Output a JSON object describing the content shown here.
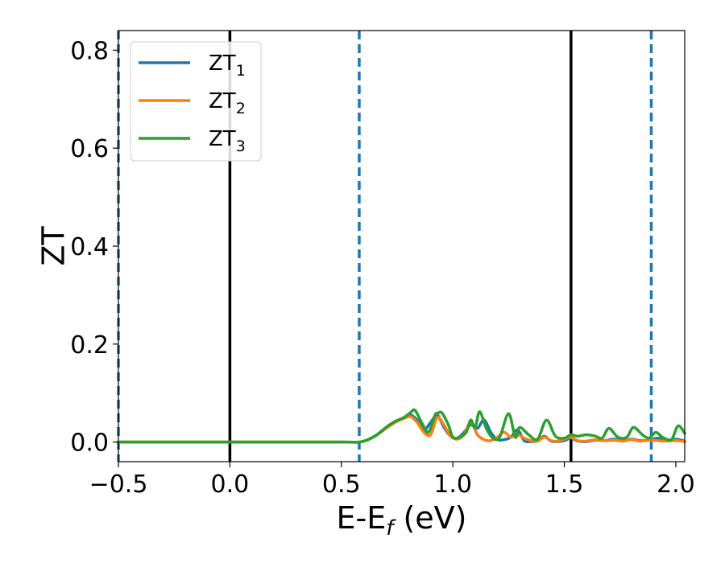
{
  "chart_data": {
    "type": "line",
    "xlabel": {
      "main": "E-E",
      "sub": "f",
      "suffix": " (eV)"
    },
    "ylabel": "ZT",
    "xlim": [
      -0.5,
      2.04
    ],
    "ylim": [
      -0.04,
      0.84
    ],
    "xticks": [
      {
        "value": -0.5,
        "label": "−0.5"
      },
      {
        "value": 0.0,
        "label": "0.0"
      },
      {
        "value": 0.5,
        "label": "0.5"
      },
      {
        "value": 1.0,
        "label": "1.0"
      },
      {
        "value": 1.5,
        "label": "1.5"
      },
      {
        "value": 2.0,
        "label": "2.0"
      }
    ],
    "yticks": [
      {
        "value": 0.0,
        "label": "0.0"
      },
      {
        "value": 0.2,
        "label": "0.2"
      },
      {
        "value": 0.4,
        "label": "0.4"
      },
      {
        "value": 0.6,
        "label": "0.6"
      },
      {
        "value": 0.8,
        "label": "0.8"
      }
    ],
    "grid": false,
    "legend_position": "top-left",
    "vlines_solid": [
      0.0,
      1.53
    ],
    "vlines_dashed": [
      -0.5,
      0.58,
      1.89
    ],
    "vline_solid_color": "#000000",
    "vline_dashed_color": "#1f77b4",
    "series": [
      {
        "name": "ZT",
        "sub": "1",
        "color": "#1f77b4",
        "x": [
          -0.5,
          0.0,
          0.5,
          0.58,
          0.62,
          0.66,
          0.7,
          0.74,
          0.78,
          0.81,
          0.84,
          0.87,
          0.9,
          0.93,
          0.96,
          0.99,
          1.02,
          1.05,
          1.08,
          1.11,
          1.14,
          1.17,
          1.2,
          1.23,
          1.26,
          1.29,
          1.32,
          1.35,
          1.38,
          1.41,
          1.44,
          1.47,
          1.5,
          1.53,
          1.56,
          1.6,
          1.64,
          1.68,
          1.72,
          1.76,
          1.8,
          1.84,
          1.88,
          1.92,
          1.96,
          2.0,
          2.04
        ],
        "y": [
          0.0,
          0.0,
          0.0,
          0.0,
          0.005,
          0.015,
          0.028,
          0.04,
          0.05,
          0.055,
          0.045,
          0.025,
          0.04,
          0.055,
          0.03,
          0.012,
          0.008,
          0.02,
          0.035,
          0.028,
          0.045,
          0.02,
          0.005,
          0.005,
          0.01,
          0.025,
          0.003,
          0.001,
          0.002,
          0.012,
          0.002,
          0.001,
          0.003,
          0.008,
          0.002,
          0.001,
          0.004,
          0.003,
          0.006,
          0.002,
          0.006,
          0.003,
          0.004,
          0.008,
          0.003,
          0.006,
          0.002
        ]
      },
      {
        "name": "ZT",
        "sub": "2",
        "color": "#ff7f0e",
        "x": [
          -0.5,
          0.0,
          0.5,
          0.58,
          0.62,
          0.66,
          0.7,
          0.74,
          0.78,
          0.81,
          0.84,
          0.87,
          0.9,
          0.93,
          0.96,
          0.99,
          1.02,
          1.05,
          1.08,
          1.11,
          1.14,
          1.17,
          1.2,
          1.23,
          1.26,
          1.29,
          1.32,
          1.35,
          1.38,
          1.41,
          1.44,
          1.47,
          1.5,
          1.53,
          1.56,
          1.6,
          1.64,
          1.68,
          1.72,
          1.76,
          1.8,
          1.84,
          1.88,
          1.92,
          1.96,
          2.0,
          2.04
        ],
        "y": [
          0.0,
          0.0,
          0.0,
          0.0,
          0.005,
          0.015,
          0.028,
          0.04,
          0.048,
          0.052,
          0.04,
          0.02,
          0.015,
          0.05,
          0.035,
          0.012,
          0.006,
          0.015,
          0.04,
          0.015,
          0.005,
          0.003,
          0.01,
          0.02,
          0.01,
          0.015,
          0.008,
          0.003,
          0.002,
          0.01,
          0.003,
          0.002,
          0.006,
          0.01,
          0.003,
          0.002,
          0.005,
          0.003,
          0.004,
          0.002,
          0.005,
          0.002,
          0.004,
          0.003,
          0.002,
          0.003,
          0.001
        ]
      },
      {
        "name": "ZT",
        "sub": "3",
        "color": "#2ca02c",
        "x": [
          -0.5,
          0.0,
          0.5,
          0.58,
          0.62,
          0.66,
          0.7,
          0.74,
          0.78,
          0.81,
          0.83,
          0.86,
          0.89,
          0.92,
          0.93,
          0.95,
          0.98,
          1.0,
          1.03,
          1.06,
          1.08,
          1.1,
          1.12,
          1.15,
          1.18,
          1.21,
          1.25,
          1.28,
          1.3,
          1.34,
          1.38,
          1.42,
          1.46,
          1.5,
          1.53,
          1.56,
          1.6,
          1.64,
          1.67,
          1.7,
          1.74,
          1.78,
          1.81,
          1.85,
          1.88,
          1.91,
          1.94,
          1.98,
          2.01,
          2.04
        ],
        "y": [
          0.0,
          0.0,
          0.0,
          0.0,
          0.005,
          0.015,
          0.03,
          0.042,
          0.05,
          0.06,
          0.065,
          0.04,
          0.02,
          0.055,
          0.058,
          0.06,
          0.035,
          0.01,
          0.01,
          0.02,
          0.045,
          0.03,
          0.062,
          0.028,
          0.008,
          0.01,
          0.058,
          0.01,
          0.03,
          0.015,
          0.006,
          0.045,
          0.012,
          0.008,
          0.015,
          0.012,
          0.015,
          0.012,
          0.008,
          0.028,
          0.01,
          0.01,
          0.03,
          0.015,
          0.008,
          0.02,
          0.01,
          0.005,
          0.033,
          0.018
        ]
      }
    ]
  }
}
